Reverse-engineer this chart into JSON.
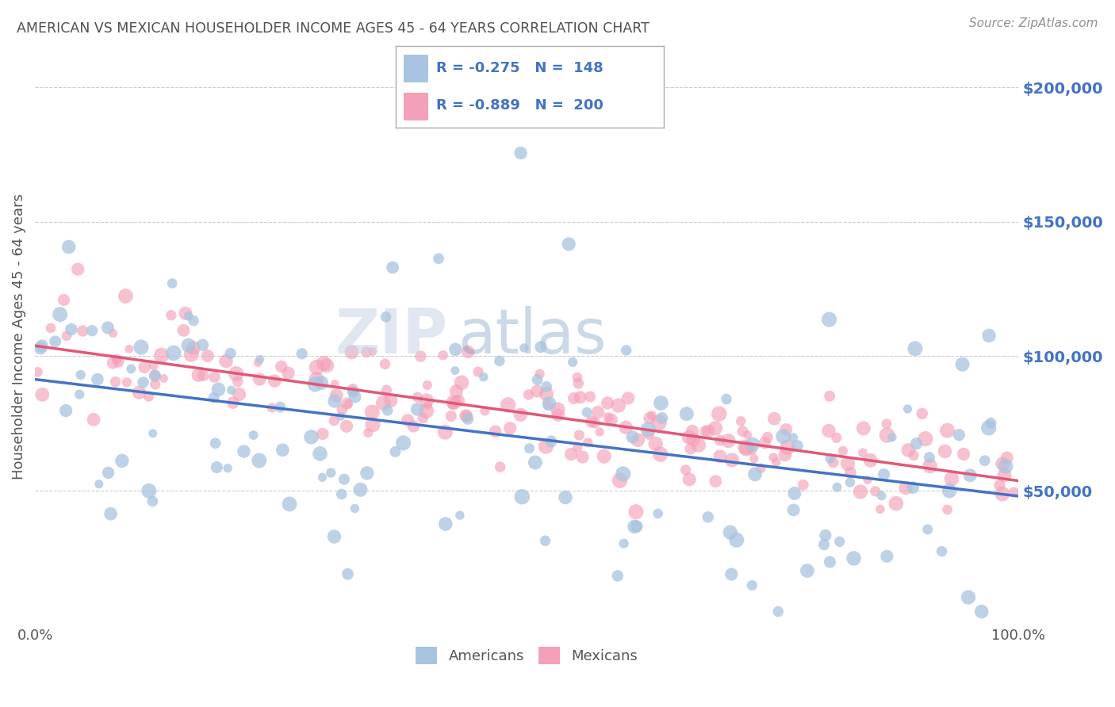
{
  "title": "AMERICAN VS MEXICAN HOUSEHOLDER INCOME AGES 45 - 64 YEARS CORRELATION CHART",
  "source": "Source: ZipAtlas.com",
  "ylabel": "Householder Income Ages 45 - 64 years",
  "xlabel_start": "0.0%",
  "xlabel_end": "100.0%",
  "watermark_zip": "ZIP",
  "watermark_atlas": "atlas",
  "legend_bottom_label1": "Americans",
  "legend_bottom_label2": "Mexicans",
  "R_american": -0.275,
  "N_american": 148,
  "R_mexican": -0.889,
  "N_mexican": 200,
  "color_american": "#a8c4e0",
  "color_mexican": "#f4a0b8",
  "line_color_american": "#4472c4",
  "line_color_mexican": "#e05878",
  "title_color": "#505050",
  "source_color": "#909090",
  "ytick_color": "#4472c4",
  "background_color": "#ffffff",
  "grid_color": "#cccccc",
  "ytick_labels": [
    "$50,000",
    "$100,000",
    "$150,000",
    "$200,000"
  ],
  "ytick_values": [
    50000,
    100000,
    150000,
    200000
  ],
  "ylim": [
    0,
    215000
  ],
  "xlim": [
    0.0,
    1.0
  ],
  "am_line_y0": 90000,
  "am_line_y1": 45000,
  "mx_line_y0": 105000,
  "mx_line_y1": 55000
}
